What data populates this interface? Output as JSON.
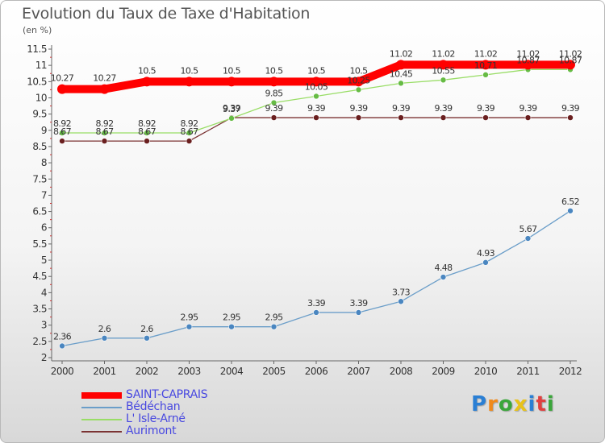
{
  "chart_data": {
    "type": "line",
    "title": "Evolution du Taux de Taxe d'Habitation",
    "subtitle": "(en %)",
    "x": [
      "2000",
      "2001",
      "2002",
      "2003",
      "2004",
      "2005",
      "2006",
      "2007",
      "2008",
      "2009",
      "2010",
      "2011",
      "2012"
    ],
    "ylim": [
      2,
      11.5
    ],
    "yticks": [
      "2",
      "2.5",
      "3",
      "3.5",
      "4",
      "4.5",
      "5",
      "5.5",
      "6",
      "6.5",
      "7",
      "7.5",
      "8",
      "8.5",
      "9",
      "9.5",
      "10",
      "10.5",
      "11",
      "11.5"
    ],
    "grid": false,
    "legend_position": "bottom-left",
    "series": [
      {
        "name": "SAINT-CAPRAIS",
        "color": "#ff0000",
        "values": [
          10.27,
          10.27,
          10.5,
          10.5,
          10.5,
          10.5,
          10.5,
          10.5,
          11.02,
          11.02,
          11.02,
          11.02,
          11.02
        ]
      },
      {
        "name": "Bédéchan",
        "color": "#6b9ec9",
        "values": [
          2.36,
          2.6,
          2.6,
          2.95,
          2.95,
          2.95,
          3.39,
          3.39,
          3.73,
          4.48,
          4.93,
          5.67,
          6.52
        ]
      },
      {
        "name": "L' Isle-Arné",
        "color": "#99dd66",
        "values": [
          8.92,
          8.92,
          8.92,
          8.92,
          9.37,
          9.85,
          10.05,
          10.25,
          10.45,
          10.55,
          10.71,
          10.87,
          10.87
        ]
      },
      {
        "name": "Aurimont",
        "color": "#7b3333",
        "values": [
          8.67,
          8.67,
          8.67,
          8.67,
          9.39,
          9.39,
          9.39,
          9.39,
          9.39,
          9.39,
          9.39,
          9.39,
          9.39
        ]
      }
    ]
  },
  "brand": {
    "letters": [
      {
        "ch": "P",
        "color": "#2a7fd4"
      },
      {
        "ch": "r",
        "color": "#f08a1c"
      },
      {
        "ch": "o",
        "color": "#3aa63a"
      },
      {
        "ch": "x",
        "color": "#e8c21a"
      },
      {
        "ch": "i",
        "color": "#2a7fd4"
      },
      {
        "ch": "t",
        "color": "#e04040"
      },
      {
        "ch": "i",
        "color": "#3aa63a"
      }
    ]
  }
}
